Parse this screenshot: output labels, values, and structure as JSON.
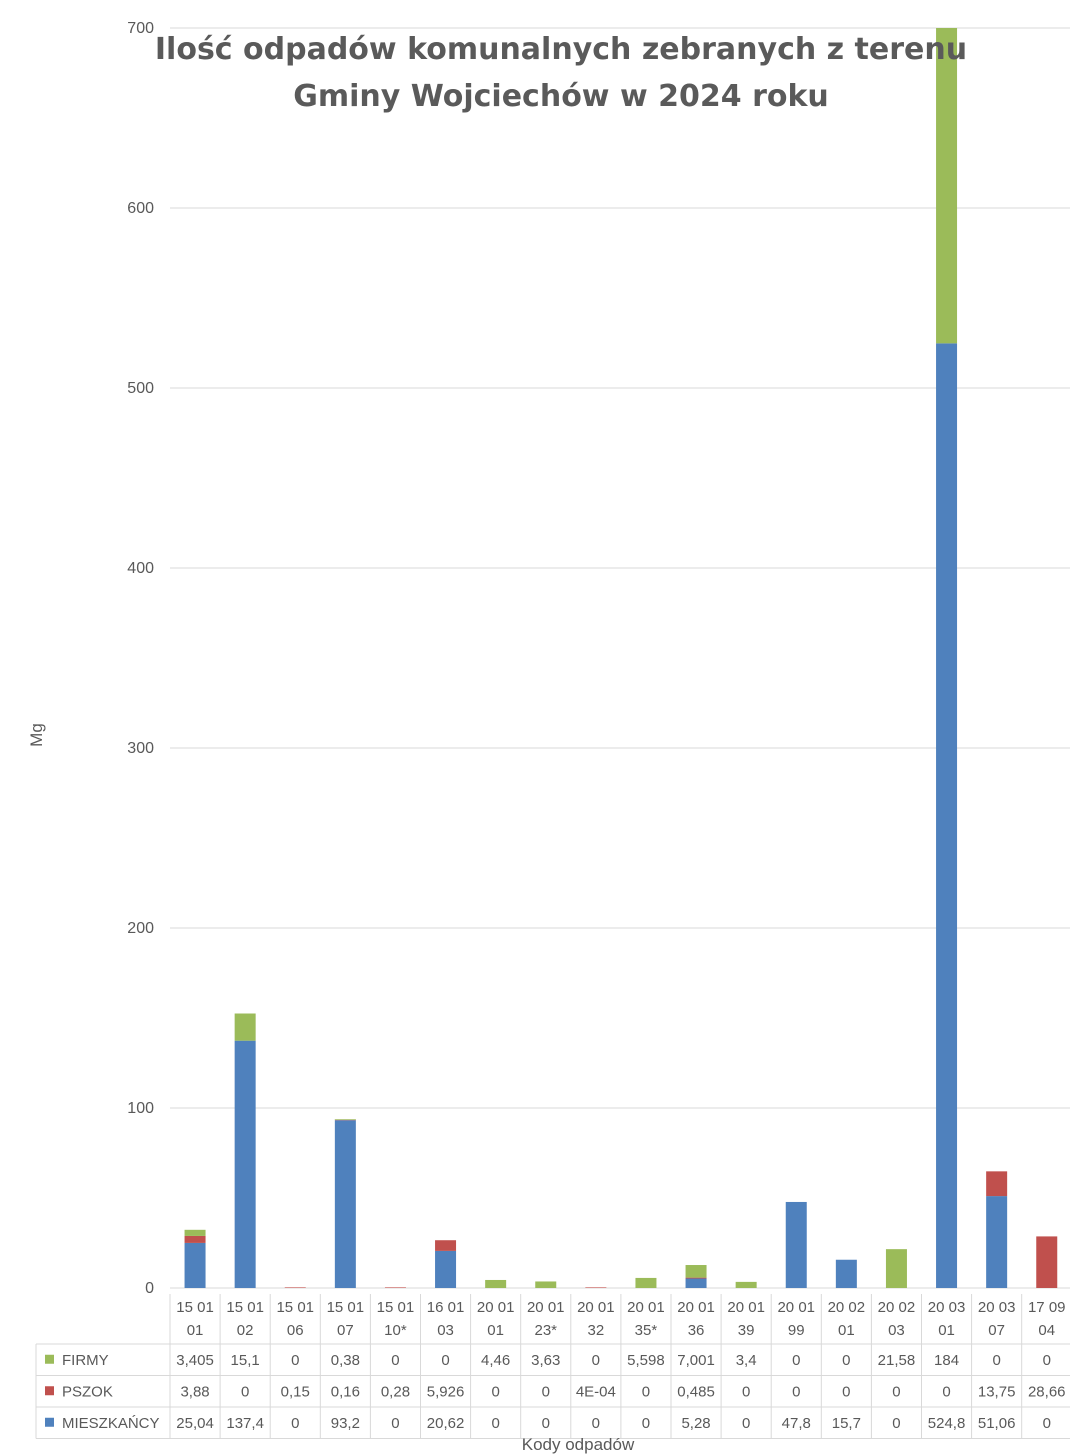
{
  "chart_data": {
    "type": "bar",
    "stacked": true,
    "title": [
      "Ilość odpadów komunalnych zebranych z terenu",
      "Gminy Wojciechów w 2024 roku"
    ],
    "ylabel": "Mg",
    "xlabel": "Kody odpadów",
    "ylim": [
      0,
      700
    ],
    "yticks": [
      "0",
      "100",
      "200",
      "300",
      "400",
      "500",
      "600",
      "700"
    ],
    "grid": true,
    "legend": "data-table-left",
    "categories": [
      [
        "15 01",
        "01"
      ],
      [
        "15 01",
        "02"
      ],
      [
        "15 01",
        "06"
      ],
      [
        "15 01",
        "07"
      ],
      [
        "15 01",
        "10*"
      ],
      [
        "16 01",
        "03"
      ],
      [
        "20 01",
        "01"
      ],
      [
        "20 01",
        "23*"
      ],
      [
        "20 01",
        "32"
      ],
      [
        "20 01",
        "35*"
      ],
      [
        "20 01",
        "36"
      ],
      [
        "20 01",
        "39"
      ],
      [
        "20 01",
        "99"
      ],
      [
        "20 02",
        "01"
      ],
      [
        "20 02",
        "03"
      ],
      [
        "20 03",
        "01"
      ],
      [
        "20 03",
        "07"
      ],
      [
        "17 09",
        "04"
      ]
    ],
    "series": [
      {
        "name": "MIESZKAŃCY",
        "color": "#4f81bd",
        "values": [
          25.04,
          137.4,
          0,
          93.2,
          0,
          20.62,
          0,
          0,
          0,
          0,
          5.28,
          0,
          47.8,
          15.7,
          0,
          524.8,
          51.06,
          0
        ],
        "labels": [
          "25,04",
          "137,4",
          "0",
          "93,2",
          "0",
          "20,62",
          "0",
          "0",
          "0",
          "0",
          "5,28",
          "0",
          "47,8",
          "15,7",
          "0",
          "524,8",
          "51,06",
          "0"
        ]
      },
      {
        "name": "PSZOK",
        "color": "#c0504d",
        "values": [
          3.88,
          0,
          0.15,
          0.16,
          0.28,
          5.926,
          0,
          0,
          0.0004,
          0,
          0.485,
          0,
          0,
          0,
          0,
          0,
          13.75,
          28.66
        ],
        "labels": [
          "3,88",
          "0",
          "0,15",
          "0,16",
          "0,28",
          "5,926",
          "0",
          "0",
          "4E-04",
          "0",
          "0,485",
          "0",
          "0",
          "0",
          "0",
          "0",
          "13,75",
          "28,66"
        ]
      },
      {
        "name": "FIRMY",
        "color": "#9bbb59",
        "values": [
          3.405,
          15.1,
          0,
          0.38,
          0,
          0,
          4.46,
          3.63,
          0,
          5.598,
          7.001,
          3.4,
          0,
          0,
          21.58,
          184,
          0,
          0
        ],
        "labels": [
          "3,405",
          "15,1",
          "0",
          "0,38",
          "0",
          "0",
          "4,46",
          "3,63",
          "0",
          "5,598",
          "7,001",
          "3,4",
          "0",
          "0",
          "21,58",
          "184",
          "0",
          "0"
        ]
      }
    ],
    "table_order": [
      "FIRMY",
      "PSZOK",
      "MIESZKAŃCY"
    ]
  }
}
